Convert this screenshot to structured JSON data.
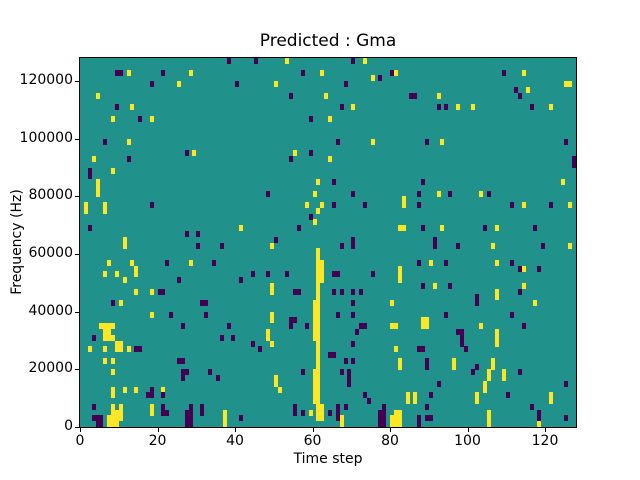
{
  "figure": {
    "title": "Predicted : Gma",
    "xlabel": "Time step",
    "ylabel": "Frequency (Hz)"
  },
  "chart_data": {
    "type": "heatmap",
    "title": "Predicted : Gma",
    "xlabel": "Time step",
    "ylabel": "Frequency (Hz)",
    "n_cols": 128,
    "n_rows": 64,
    "x_range": [
      0,
      128
    ],
    "y_range": [
      0,
      128000
    ],
    "freq_bin_hz": 2000,
    "x_ticks": [
      0,
      20,
      40,
      60,
      80,
      100,
      120
    ],
    "y_ticks": [
      0,
      20000,
      40000,
      60000,
      80000,
      100000,
      120000
    ],
    "grid": false,
    "legend": "none",
    "colors": {
      "background": "#21918c",
      "high": "#fde725",
      "low": "#440154",
      "spine": "#000000"
    },
    "cells_high": [
      [
        12,
        61
      ],
      [
        28,
        61
      ],
      [
        25,
        59
      ],
      [
        4,
        57
      ],
      [
        13,
        55
      ],
      [
        8,
        53
      ],
      [
        18,
        53
      ],
      [
        12,
        49
      ],
      [
        29,
        47
      ],
      [
        3,
        46
      ],
      [
        8,
        44
      ],
      [
        4,
        42
      ],
      [
        4,
        41
      ],
      [
        4,
        40
      ],
      [
        1,
        38
      ],
      [
        1,
        37
      ],
      [
        6,
        38
      ],
      [
        6,
        37
      ],
      [
        41,
        34
      ],
      [
        11,
        32
      ],
      [
        53,
        63
      ],
      [
        73,
        63
      ],
      [
        81,
        61
      ],
      [
        50,
        59
      ],
      [
        75,
        60
      ],
      [
        63,
        57
      ],
      [
        70,
        55
      ],
      [
        64,
        53
      ],
      [
        75,
        49
      ],
      [
        55,
        47
      ],
      [
        64,
        46
      ],
      [
        61,
        42
      ],
      [
        58,
        38
      ],
      [
        83,
        39
      ],
      [
        83,
        38
      ],
      [
        61,
        37
      ],
      [
        82,
        34
      ],
      [
        83,
        34
      ],
      [
        114,
        61
      ],
      [
        125,
        59
      ],
      [
        126,
        59
      ],
      [
        92,
        57
      ],
      [
        115,
        58
      ],
      [
        97,
        55
      ],
      [
        101,
        55
      ],
      [
        121,
        55
      ],
      [
        93,
        49
      ],
      [
        124,
        42
      ],
      [
        92,
        40
      ],
      [
        103,
        40
      ],
      [
        114,
        38
      ],
      [
        126,
        38
      ],
      [
        93,
        34
      ],
      [
        107,
        34
      ],
      [
        11,
        31
      ],
      [
        7,
        28
      ],
      [
        13,
        28
      ],
      [
        28,
        28
      ],
      [
        6,
        26
      ],
      [
        9,
        26
      ],
      [
        14,
        27
      ],
      [
        14,
        26
      ],
      [
        11,
        25
      ],
      [
        14,
        23
      ],
      [
        18,
        23
      ],
      [
        10,
        21
      ],
      [
        18,
        19
      ],
      [
        5,
        17
      ],
      [
        6,
        17
      ],
      [
        7,
        17
      ],
      [
        8,
        17
      ],
      [
        6,
        16
      ],
      [
        7,
        16
      ],
      [
        6,
        15
      ],
      [
        7,
        15
      ],
      [
        8,
        15
      ],
      [
        9,
        14
      ],
      [
        10,
        14
      ],
      [
        2,
        13
      ],
      [
        6,
        13
      ],
      [
        9,
        13
      ],
      [
        10,
        13
      ],
      [
        12,
        13
      ],
      [
        6,
        11
      ],
      [
        8,
        11
      ],
      [
        8,
        9
      ],
      [
        8,
        6
      ],
      [
        11,
        6
      ],
      [
        14,
        6
      ],
      [
        21,
        6
      ],
      [
        8,
        5
      ],
      [
        8,
        3
      ],
      [
        10,
        3
      ],
      [
        18,
        3
      ],
      [
        8,
        2
      ],
      [
        9,
        2
      ],
      [
        10,
        2
      ],
      [
        18,
        2
      ],
      [
        7,
        1
      ],
      [
        8,
        1
      ],
      [
        9,
        1
      ],
      [
        10,
        1
      ],
      [
        37,
        2
      ],
      [
        37,
        1
      ],
      [
        37,
        0
      ],
      [
        7,
        0
      ],
      [
        8,
        0
      ],
      [
        9,
        0
      ],
      [
        61,
        1
      ],
      [
        61,
        2
      ],
      [
        61,
        3
      ],
      [
        61,
        4
      ],
      [
        61,
        5
      ],
      [
        61,
        6
      ],
      [
        61,
        7
      ],
      [
        61,
        8
      ],
      [
        61,
        9
      ],
      [
        61,
        10
      ],
      [
        61,
        11
      ],
      [
        61,
        12
      ],
      [
        61,
        13
      ],
      [
        61,
        14
      ],
      [
        61,
        15
      ],
      [
        61,
        16
      ],
      [
        61,
        17
      ],
      [
        61,
        18
      ],
      [
        61,
        19
      ],
      [
        61,
        20
      ],
      [
        61,
        21
      ],
      [
        61,
        22
      ],
      [
        61,
        23
      ],
      [
        61,
        24
      ],
      [
        61,
        25
      ],
      [
        61,
        26
      ],
      [
        61,
        27
      ],
      [
        61,
        28
      ],
      [
        61,
        29
      ],
      [
        61,
        30
      ],
      [
        60,
        4
      ],
      [
        60,
        5
      ],
      [
        60,
        6
      ],
      [
        60,
        7
      ],
      [
        60,
        8
      ],
      [
        60,
        9
      ],
      [
        60,
        15
      ],
      [
        60,
        16
      ],
      [
        60,
        17
      ],
      [
        60,
        18
      ],
      [
        60,
        19
      ],
      [
        60,
        20
      ],
      [
        60,
        21
      ],
      [
        60,
        35
      ],
      [
        60,
        40
      ],
      [
        62,
        1
      ],
      [
        62,
        2
      ],
      [
        62,
        3
      ],
      [
        62,
        25
      ],
      [
        62,
        26
      ],
      [
        62,
        27
      ],
      [
        62,
        28
      ],
      [
        62,
        38
      ],
      [
        62,
        61
      ],
      [
        59,
        2
      ],
      [
        49,
        31
      ],
      [
        82,
        27
      ],
      [
        82,
        26
      ],
      [
        82,
        25
      ],
      [
        49,
        24
      ],
      [
        49,
        23
      ],
      [
        80,
        21
      ],
      [
        49,
        19
      ],
      [
        49,
        18
      ],
      [
        81,
        17
      ],
      [
        80,
        17
      ],
      [
        48,
        16
      ],
      [
        48,
        15
      ],
      [
        49,
        14
      ],
      [
        81,
        13
      ],
      [
        82,
        11
      ],
      [
        82,
        10
      ],
      [
        50,
        8
      ],
      [
        50,
        7
      ],
      [
        51,
        6
      ],
      [
        84,
        5
      ],
      [
        84,
        4
      ],
      [
        67,
        1
      ],
      [
        67,
        0
      ],
      [
        81,
        2
      ],
      [
        82,
        2
      ],
      [
        81,
        1
      ],
      [
        82,
        1
      ],
      [
        80,
        1
      ],
      [
        81,
        0
      ],
      [
        82,
        0
      ],
      [
        80,
        0
      ],
      [
        106,
        31
      ],
      [
        126,
        31
      ],
      [
        90,
        28
      ],
      [
        107,
        28
      ],
      [
        114,
        27
      ],
      [
        91,
        24
      ],
      [
        114,
        24
      ],
      [
        107,
        23
      ],
      [
        107,
        22
      ],
      [
        117,
        21
      ],
      [
        88,
        18
      ],
      [
        89,
        18
      ],
      [
        88,
        17
      ],
      [
        89,
        17
      ],
      [
        103,
        17
      ],
      [
        107,
        16
      ],
      [
        107,
        15
      ],
      [
        107,
        14
      ],
      [
        96,
        11
      ],
      [
        96,
        10
      ],
      [
        106,
        11
      ],
      [
        106,
        10
      ],
      [
        105,
        9
      ],
      [
        105,
        8
      ],
      [
        109,
        9
      ],
      [
        109,
        8
      ],
      [
        104,
        7
      ],
      [
        104,
        6
      ],
      [
        86,
        5
      ],
      [
        86,
        4
      ],
      [
        102,
        5
      ],
      [
        102,
        4
      ],
      [
        121,
        5
      ],
      [
        121,
        4
      ],
      [
        105,
        2
      ],
      [
        105,
        1
      ],
      [
        105,
        0
      ],
      [
        118,
        0
      ]
    ],
    "cells_low": [
      [
        9,
        61
      ],
      [
        10,
        61
      ],
      [
        21,
        61
      ],
      [
        18,
        59
      ],
      [
        40,
        59
      ],
      [
        9,
        55
      ],
      [
        15,
        53
      ],
      [
        6,
        49
      ],
      [
        27,
        47
      ],
      [
        12,
        46
      ],
      [
        2,
        44
      ],
      [
        2,
        43
      ],
      [
        18,
        38
      ],
      [
        2,
        34
      ],
      [
        27,
        33
      ],
      [
        30,
        33
      ],
      [
        45,
        63
      ],
      [
        70,
        63
      ],
      [
        38,
        63
      ],
      [
        57,
        61
      ],
      [
        80,
        61
      ],
      [
        68,
        59
      ],
      [
        77,
        60
      ],
      [
        54,
        57
      ],
      [
        85,
        57
      ],
      [
        67,
        55
      ],
      [
        59,
        53
      ],
      [
        66,
        49
      ],
      [
        59,
        47
      ],
      [
        54,
        46
      ],
      [
        65,
        42
      ],
      [
        48,
        40
      ],
      [
        70,
        40
      ],
      [
        65,
        38
      ],
      [
        73,
        38
      ],
      [
        59,
        36
      ],
      [
        56,
        34
      ],
      [
        50,
        32
      ],
      [
        70,
        32
      ],
      [
        109,
        61
      ],
      [
        112,
        58
      ],
      [
        113,
        57
      ],
      [
        86,
        57
      ],
      [
        92,
        55
      ],
      [
        94,
        55
      ],
      [
        116,
        55
      ],
      [
        89,
        49
      ],
      [
        125,
        49
      ],
      [
        127,
        46
      ],
      [
        127,
        45
      ],
      [
        88,
        42
      ],
      [
        87,
        40
      ],
      [
        95,
        40
      ],
      [
        105,
        40
      ],
      [
        87,
        38
      ],
      [
        111,
        38
      ],
      [
        121,
        38
      ],
      [
        88,
        34
      ],
      [
        104,
        34
      ],
      [
        117,
        34
      ],
      [
        91,
        32
      ],
      [
        30,
        31
      ],
      [
        36,
        31
      ],
      [
        22,
        28
      ],
      [
        34,
        28
      ],
      [
        25,
        25
      ],
      [
        41,
        25
      ],
      [
        20,
        23
      ],
      [
        21,
        23
      ],
      [
        8,
        21
      ],
      [
        31,
        21
      ],
      [
        32,
        21
      ],
      [
        23,
        19
      ],
      [
        32,
        19
      ],
      [
        26,
        17
      ],
      [
        38,
        17
      ],
      [
        3,
        15
      ],
      [
        36,
        15
      ],
      [
        39,
        15
      ],
      [
        14,
        13
      ],
      [
        15,
        13
      ],
      [
        25,
        11
      ],
      [
        26,
        11
      ],
      [
        26,
        9
      ],
      [
        27,
        9
      ],
      [
        33,
        9
      ],
      [
        26,
        8
      ],
      [
        35,
        8
      ],
      [
        18,
        6
      ],
      [
        17,
        5
      ],
      [
        18,
        5
      ],
      [
        21,
        5
      ],
      [
        3,
        3
      ],
      [
        21,
        3
      ],
      [
        28,
        3
      ],
      [
        31,
        3
      ],
      [
        3,
        1
      ],
      [
        4,
        1
      ],
      [
        5,
        1
      ],
      [
        4,
        0
      ],
      [
        5,
        0
      ],
      [
        21,
        2
      ],
      [
        22,
        2
      ],
      [
        27,
        2
      ],
      [
        28,
        2
      ],
      [
        27,
        1
      ],
      [
        28,
        1
      ],
      [
        27,
        0
      ],
      [
        28,
        0
      ],
      [
        31,
        2
      ],
      [
        41,
        1
      ],
      [
        55,
        2
      ],
      [
        57,
        2
      ],
      [
        64,
        2
      ],
      [
        66,
        2
      ],
      [
        66,
        1
      ],
      [
        67,
        31
      ],
      [
        70,
        31
      ],
      [
        44,
        26
      ],
      [
        48,
        26
      ],
      [
        53,
        26
      ],
      [
        65,
        26
      ],
      [
        66,
        26
      ],
      [
        75,
        26
      ],
      [
        55,
        23
      ],
      [
        56,
        23
      ],
      [
        65,
        23
      ],
      [
        67,
        23
      ],
      [
        70,
        23
      ],
      [
        72,
        23
      ],
      [
        70,
        21
      ],
      [
        54,
        18
      ],
      [
        55,
        18
      ],
      [
        54,
        17
      ],
      [
        66,
        19
      ],
      [
        70,
        19
      ],
      [
        58,
        17
      ],
      [
        72,
        17
      ],
      [
        73,
        17
      ],
      [
        71,
        16
      ],
      [
        44,
        14
      ],
      [
        70,
        14
      ],
      [
        46,
        13
      ],
      [
        64,
        12
      ],
      [
        65,
        12
      ],
      [
        68,
        11
      ],
      [
        70,
        11
      ],
      [
        57,
        9
      ],
      [
        67,
        9
      ],
      [
        69,
        9
      ],
      [
        69,
        8
      ],
      [
        69,
        7
      ],
      [
        73,
        5
      ],
      [
        55,
        3
      ],
      [
        66,
        3
      ],
      [
        68,
        3
      ],
      [
        74,
        4
      ],
      [
        78,
        3
      ],
      [
        77,
        2
      ],
      [
        78,
        2
      ],
      [
        77,
        1
      ],
      [
        78,
        1
      ],
      [
        77,
        0
      ],
      [
        78,
        0
      ],
      [
        87,
        1
      ],
      [
        87,
        0
      ],
      [
        91,
        31
      ],
      [
        97,
        31
      ],
      [
        119,
        31
      ],
      [
        87,
        28
      ],
      [
        94,
        28
      ],
      [
        111,
        28
      ],
      [
        113,
        27
      ],
      [
        118,
        27
      ],
      [
        88,
        24
      ],
      [
        95,
        24
      ],
      [
        102,
        22
      ],
      [
        113,
        23
      ],
      [
        102,
        21
      ],
      [
        94,
        19
      ],
      [
        111,
        19
      ],
      [
        114,
        17
      ],
      [
        97,
        16
      ],
      [
        98,
        16
      ],
      [
        98,
        15
      ],
      [
        98,
        14
      ],
      [
        99,
        13
      ],
      [
        87,
        13
      ],
      [
        88,
        13
      ],
      [
        89,
        11
      ],
      [
        89,
        10
      ],
      [
        102,
        10
      ],
      [
        101,
        9
      ],
      [
        113,
        9
      ],
      [
        92,
        7
      ],
      [
        125,
        7
      ],
      [
        90,
        5
      ],
      [
        110,
        5
      ],
      [
        89,
        3
      ],
      [
        116,
        3
      ],
      [
        118,
        2
      ],
      [
        118,
        1
      ],
      [
        89,
        1
      ],
      [
        90,
        1
      ],
      [
        125,
        1
      ]
    ]
  }
}
